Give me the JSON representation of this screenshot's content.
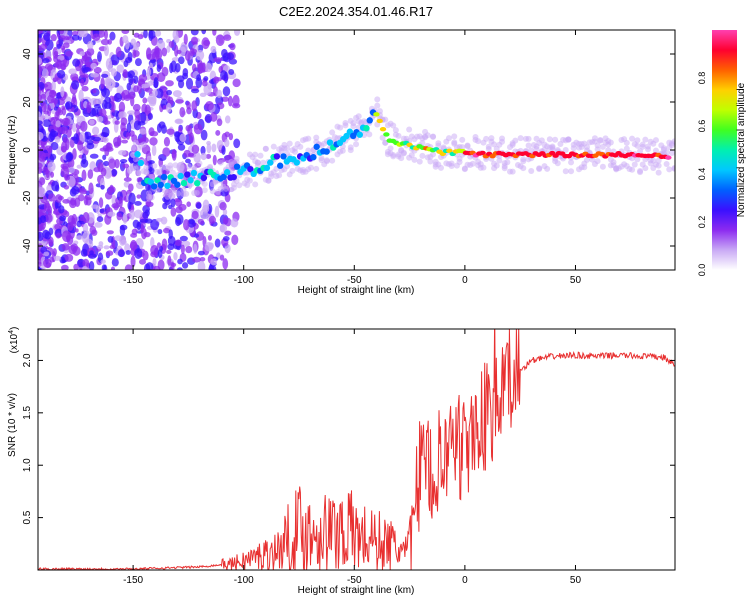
{
  "title": "C2E2.2024.354.01.46.R17",
  "chart_data": [
    {
      "type": "heatmap",
      "title": "C2E2.2024.354.01.46.R17",
      "xlabel": "Height of straight line (km)",
      "ylabel": "Frequency (Hz)",
      "xlim": [
        -193,
        95
      ],
      "ylim": [
        -50,
        50
      ],
      "xticks": [
        -150,
        -100,
        -50,
        0,
        50
      ],
      "yticks": [
        -40,
        -20,
        0,
        20,
        40
      ],
      "colorbar": {
        "label": "Normalized spectral amplitude",
        "range": [
          0,
          1
        ],
        "ticks": [
          "0.0",
          "0.2",
          "0.4",
          "0.6",
          "0.8"
        ],
        "colors": [
          "#ffffff",
          "#c9a9f5",
          "#8c2bf0",
          "#3a10ff",
          "#0060ff",
          "#00c8ff",
          "#00f0b0",
          "#40ff20",
          "#c0ff00",
          "#ffd000",
          "#ff6000",
          "#ff0030",
          "#ff40b0"
        ]
      },
      "ridge": {
        "x": [
          -145,
          -130,
          -115,
          -100,
          -85,
          -70,
          -55,
          -45,
          -40,
          -35,
          -30,
          -20,
          -10,
          0,
          10,
          25,
          50,
          75,
          93
        ],
        "freq": [
          -14,
          -12,
          -11,
          -9,
          -5,
          -2,
          4,
          10,
          15,
          5,
          3,
          1,
          -1,
          -1,
          -2,
          -2,
          -2,
          -2,
          -3
        ]
      }
    },
    {
      "type": "line",
      "xlabel": "Height of straight line (km)",
      "ylabel": "SNR (10 * v/v)",
      "exponent_label": "(x10",
      "exponent_power": "4",
      "exponent_close": ")",
      "xlim": [
        -193,
        95
      ],
      "ylim": [
        0,
        2.3
      ],
      "xticks": [
        -150,
        -100,
        -50,
        0,
        50
      ],
      "yticks": [
        "0.5",
        "1.0",
        "1.5",
        "2.0"
      ],
      "series": [
        {
          "name": "SNR",
          "color": "#e83030",
          "x": [
            -193,
            -150,
            -120,
            -105,
            -95,
            -85,
            -80,
            -75,
            -70,
            -65,
            -60,
            -55,
            -50,
            -45,
            -40,
            -35,
            -30,
            -26,
            -24,
            -22,
            -20,
            -15,
            -10,
            -5,
            0,
            5,
            10,
            15,
            20,
            25,
            30,
            40,
            50,
            60,
            70,
            80,
            90,
            95
          ],
          "y": [
            0.01,
            0.01,
            0.03,
            0.06,
            0.12,
            0.18,
            0.3,
            0.4,
            0.35,
            0.38,
            0.35,
            0.42,
            0.35,
            0.3,
            0.28,
            0.25,
            0.2,
            0.15,
            0.35,
            0.7,
            0.9,
            0.95,
            1.0,
            1.05,
            1.2,
            1.35,
            1.5,
            1.6,
            1.75,
            1.9,
            2.0,
            2.04,
            2.05,
            2.04,
            2.05,
            2.04,
            2.03,
            1.95
          ]
        }
      ]
    }
  ]
}
